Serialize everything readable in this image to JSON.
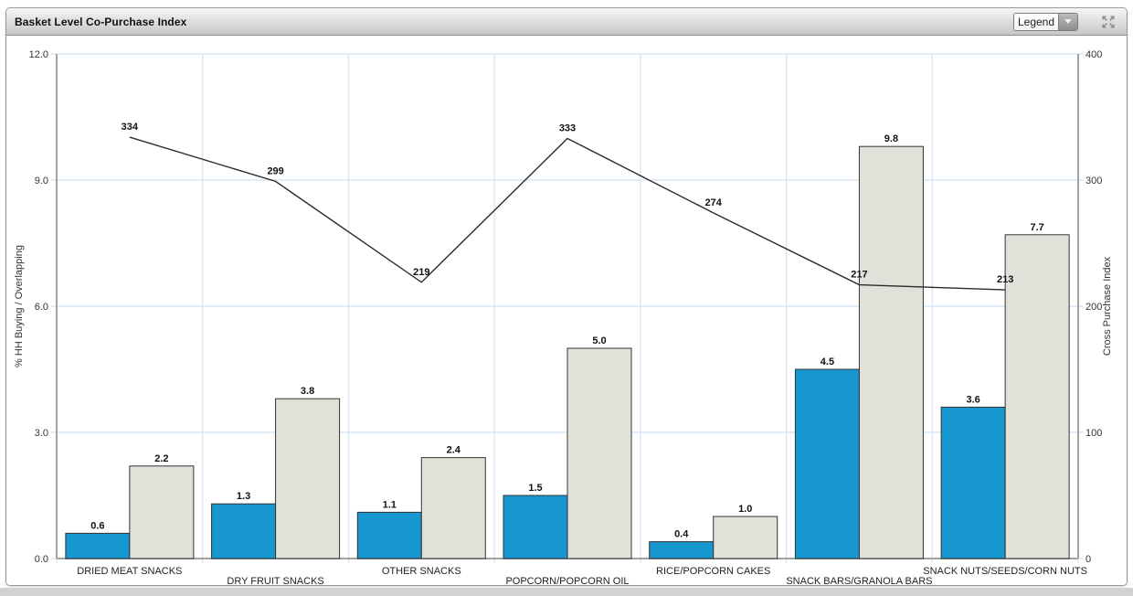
{
  "header": {
    "title": "Basket Level Co-Purchase Index",
    "legend_dropdown": {
      "label": "Legend",
      "icon": "chevron-down"
    },
    "expand_icon": "expand-arrows"
  },
  "colors": {
    "primary_bar": "#1797d0",
    "secondary_bar": "#e1e1da",
    "bar_border": "#333333",
    "line": "#2b2b2b",
    "gridline": "#d9e6f4",
    "axis_line": "#a2a2a2",
    "tick_text": "#333333",
    "value_text": "#111111",
    "header_top": "#f6f6f6",
    "header_bottom": "#c7c7c7"
  },
  "chart_data": {
    "type": "combo-bar-line",
    "title": "Basket Level Co-Purchase Index",
    "categories": [
      "DRIED MEAT SNACKS",
      "DRY FRUIT SNACKS",
      "OTHER SNACKS",
      "POPCORN/POPCORN OIL",
      "RICE/POPCORN CAKES",
      "SNACK BARS/GRANOLA BARS",
      "SNACK NUTS/SEEDS/CORN NUTS"
    ],
    "series": [
      {
        "name": "% HH Buying",
        "type": "bar",
        "axis": "left",
        "color": "#1797d0",
        "values": [
          0.6,
          1.3,
          1.1,
          1.5,
          0.4,
          4.5,
          3.6
        ],
        "labels": [
          "0.6",
          "1.3",
          "1.1",
          "1.5",
          "0.4",
          "4.5",
          "3.6"
        ]
      },
      {
        "name": "Overlapping",
        "type": "bar",
        "axis": "left",
        "color": "#e1e1da",
        "values": [
          2.2,
          3.8,
          2.4,
          5.0,
          1.0,
          9.8,
          7.7
        ],
        "labels": [
          "2.2",
          "3.8",
          "2.4",
          "5.0",
          "1.0",
          "9.8",
          "7.7"
        ]
      },
      {
        "name": "Cross Purchase Index",
        "type": "line",
        "axis": "right",
        "color": "#2b2b2b",
        "values": [
          334,
          299,
          219,
          333,
          274,
          217,
          213
        ],
        "labels": [
          "334",
          "299",
          "219",
          "333",
          "274",
          "217",
          "213"
        ]
      }
    ],
    "left_axis": {
      "label": "% HH Buying / Overlapping",
      "min": 0,
      "max": 12,
      "tick_values": [
        0,
        3,
        6,
        9,
        12
      ],
      "tick_labels": [
        "0.0",
        "3.0",
        "6.0",
        "9.0",
        "12.0"
      ]
    },
    "right_axis": {
      "label": "Cross Purchase Index",
      "min": 0,
      "max": 400,
      "tick_values": [
        0,
        100,
        200,
        300,
        400
      ],
      "tick_labels": [
        "0",
        "100",
        "200",
        "300",
        "400"
      ]
    },
    "grid": true,
    "legend_position": "collapsed-dropdown"
  }
}
